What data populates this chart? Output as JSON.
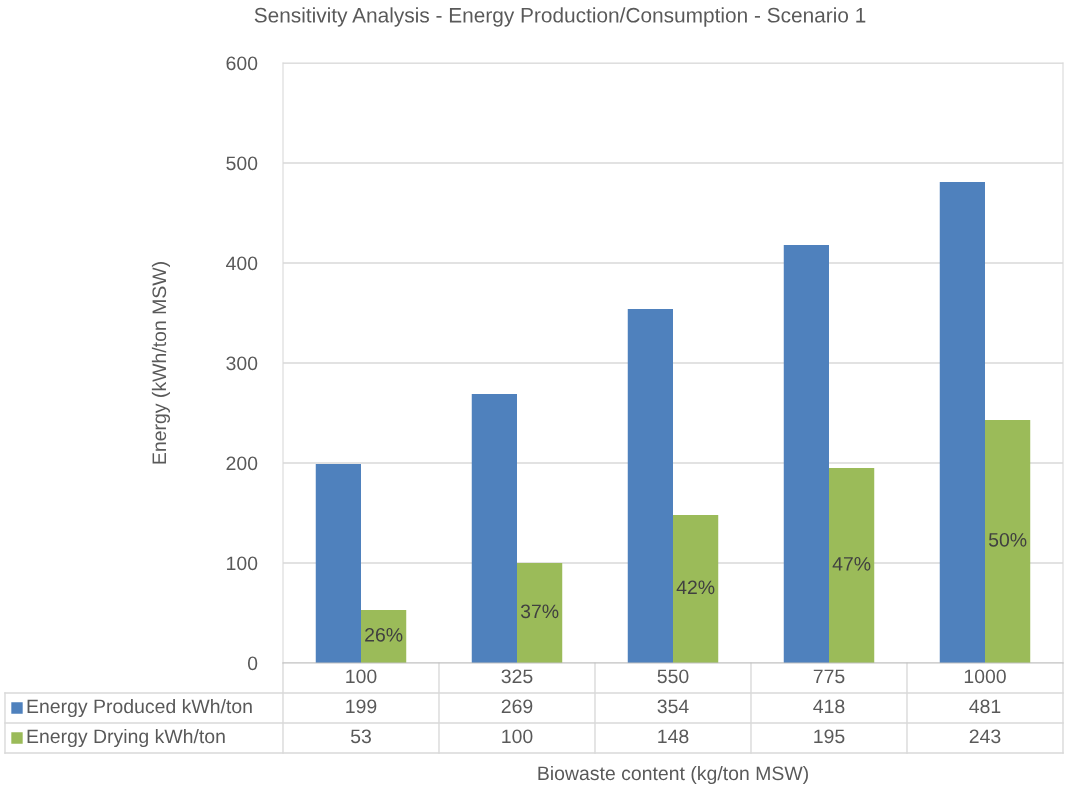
{
  "chart_data": {
    "type": "bar",
    "title": "Sensitivity Analysis - Energy Production/Consumption - Scenario 1",
    "xlabel": "Biowaste content (kg/ton MSW)",
    "ylabel": "Energy (kWh/ton MSW)",
    "categories": [
      "100",
      "325",
      "550",
      "775",
      "1000"
    ],
    "series": [
      {
        "name": "Energy Produced kWh/ton",
        "color": "#4f81bd",
        "values": [
          199,
          269,
          354,
          418,
          481
        ]
      },
      {
        "name": "Energy Drying kWh/ton",
        "color": "#9bbb59",
        "values": [
          53,
          100,
          148,
          195,
          243
        ]
      }
    ],
    "annotations": [
      {
        "text": "26%",
        "x": "100",
        "y": 26.5
      },
      {
        "text": "37%",
        "x": "325",
        "y": 50
      },
      {
        "text": "42%",
        "x": "550",
        "y": 74
      },
      {
        "text": "47%",
        "x": "775",
        "y": 97.5
      },
      {
        "text": "50%",
        "x": "1000",
        "y": 121.5
      }
    ],
    "ylim": [
      0,
      600
    ],
    "yticks": [
      0,
      100,
      200,
      300,
      400,
      500,
      600
    ],
    "grid": "y",
    "legend": "bottom",
    "data_labels": true
  }
}
